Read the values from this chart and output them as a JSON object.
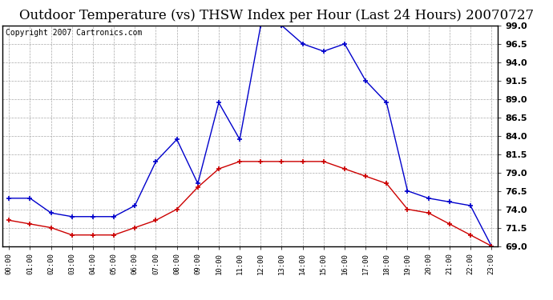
{
  "title": "Outdoor Temperature (vs) THSW Index per Hour (Last 24 Hours) 20070727",
  "copyright": "Copyright 2007 Cartronics.com",
  "hours": [
    "00:00",
    "01:00",
    "02:00",
    "03:00",
    "04:00",
    "05:00",
    "06:00",
    "07:00",
    "08:00",
    "09:00",
    "10:00",
    "11:00",
    "12:00",
    "13:00",
    "14:00",
    "15:00",
    "16:00",
    "17:00",
    "18:00",
    "19:00",
    "20:00",
    "21:00",
    "22:00",
    "23:00"
  ],
  "thsw": [
    75.5,
    75.5,
    73.5,
    73.0,
    73.0,
    73.0,
    74.5,
    80.5,
    83.5,
    77.5,
    88.5,
    83.5,
    99.0,
    99.0,
    96.5,
    95.5,
    96.5,
    91.5,
    88.5,
    76.5,
    75.5,
    75.0,
    74.5,
    69.0
  ],
  "temp": [
    72.5,
    72.0,
    71.5,
    70.5,
    70.5,
    70.5,
    71.5,
    72.5,
    74.0,
    77.0,
    79.5,
    80.5,
    80.5,
    80.5,
    80.5,
    80.5,
    79.5,
    78.5,
    77.5,
    74.0,
    73.5,
    72.0,
    70.5,
    69.0
  ],
  "thsw_color": "#0000cc",
  "temp_color": "#cc0000",
  "ylim_min": 69.0,
  "ylim_max": 99.0,
  "yticks": [
    69.0,
    71.5,
    74.0,
    76.5,
    79.0,
    81.5,
    84.0,
    86.5,
    89.0,
    91.5,
    94.0,
    96.5,
    99.0
  ],
  "bg_color": "#ffffff",
  "grid_color": "#aaaaaa",
  "title_fontsize": 12,
  "copyright_fontsize": 7
}
